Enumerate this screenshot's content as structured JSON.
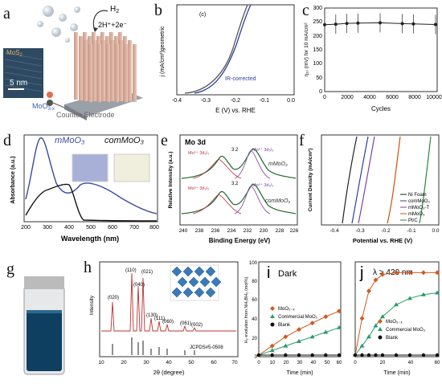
{
  "panels": {
    "a": {
      "label": "a",
      "h2": "H",
      "h2_sub": "2",
      "reaction": "2H⁺+2e⁻",
      "mos2": "MoS",
      "mos2_sub": "2",
      "scale": "5 nm",
      "moo3x": "MoO",
      "moo3x_sub": "3-x",
      "counter": "Counter Electrode"
    },
    "b": {
      "label": "b",
      "inner_tag": "(c)",
      "ylabel": "j (mA/cm²)geometric",
      "xlabel": "E (V) vs. RHE",
      "annotation": "IR-corrected",
      "xticks": [
        "-0.4",
        "-0.3",
        "-0.2",
        "-0.1",
        "0.0"
      ]
    },
    "c": {
      "label": "c",
      "ylabel": "η₁₀ (mV) for 10 mA/cm²",
      "xlabel": "Cycles",
      "xticks": [
        "0",
        "2000",
        "4000",
        "6000",
        "8000",
        "10000"
      ],
      "yticks": [
        "0",
        "50",
        "100",
        "150",
        "200",
        "250",
        "300"
      ]
    },
    "d": {
      "label": "d",
      "legend1": "mMoO₃",
      "legend2": "comMoO₃",
      "ylabel": "Absorbance (a.u.)",
      "xlabel": "Wavelength (nm)",
      "xticks": [
        "200",
        "300",
        "400",
        "500",
        "600",
        "700",
        "800"
      ]
    },
    "e": {
      "label": "e",
      "title": "Mo 3d",
      "ylabel": "Relative Intensity (a.u.)",
      "xlabel": "Binding Energy (eV)",
      "s1": "mMoO₃",
      "s2": "comMoO₃",
      "split": "3.2",
      "peak_a": "Mo⁵⁺ 3d₅/₂",
      "peak_b": "Mo⁶⁺ 3d₃/₂",
      "peak_c": "Mo⁶⁺ 3d₅/₂",
      "xticks": [
        "240",
        "238",
        "236",
        "234",
        "232",
        "230",
        "228",
        "226"
      ]
    },
    "f": {
      "label": "f",
      "ylabel": "Current Density (mA/cm²)",
      "xlabel": "Potential vs. RHE (V)",
      "legend": [
        "Ni Foam",
        "comMoO₃",
        "mMoO₃-T",
        "mMoO₃",
        "Pt/C"
      ],
      "xticks": [
        "-0.4",
        "-0.3",
        "-0.2",
        "-0.1",
        "0.0"
      ]
    },
    "g": {
      "label": "g"
    },
    "h": {
      "label": "h",
      "ylabel": "Intensity",
      "xlabel": "2θ (degree)",
      "jcpds": "JCPDS#5-0508",
      "peaks": [
        "(020)",
        "(110)",
        "(040)",
        "(021)",
        "(130)",
        "(111)",
        "(060)",
        "(061)",
        "(002)"
      ],
      "xticks": [
        "10",
        "20",
        "30",
        "40",
        "50",
        "60",
        "70"
      ]
    },
    "i": {
      "label": "i",
      "title": "Dark",
      "ylabel": "H₂ evolution from NH₃BH₃ (mol%)",
      "xlabel": "Time (min)",
      "legend": [
        "MoO₃₋ₓ",
        "Commercial MoO₃",
        "Blank"
      ],
      "xticks": [
        "0",
        "10",
        "20",
        "30",
        "40",
        "50",
        "60"
      ],
      "yticks": [
        "0",
        "20",
        "40",
        "60",
        "80",
        "100"
      ]
    },
    "j": {
      "label": "j",
      "title": "λ > 420 nm",
      "xlabel": "Time (min)",
      "legend": [
        "MoO₃₋ₓ",
        "Commercial MoO₃",
        "Blank"
      ],
      "xticks": [
        "0",
        "20",
        "40",
        "60"
      ]
    }
  },
  "chart_data": [
    {
      "type": "line",
      "panel": "c",
      "x": [
        0,
        1000,
        2000,
        3000,
        5000,
        7000,
        8000,
        10000
      ],
      "values": [
        240,
        242,
        245,
        246,
        247,
        244,
        243,
        241
      ],
      "ylim": [
        0,
        300
      ],
      "xlim": [
        0,
        10000
      ]
    },
    {
      "type": "line",
      "panel": "i",
      "x": [
        0,
        10,
        20,
        30,
        40,
        50,
        60
      ],
      "series": [
        {
          "name": "MoO₃₋ₓ",
          "values": [
            0,
            10,
            20,
            28,
            35,
            42,
            48
          ]
        },
        {
          "name": "Commercial MoO₃",
          "values": [
            0,
            5,
            10,
            15,
            20,
            25,
            30
          ]
        },
        {
          "name": "Blank",
          "values": [
            0,
            0,
            0,
            0,
            0,
            0,
            0
          ]
        }
      ],
      "ylim": [
        0,
        100
      ],
      "xlim": [
        0,
        60
      ]
    },
    {
      "type": "line",
      "panel": "j",
      "x": [
        0,
        5,
        10,
        15,
        20,
        30,
        40,
        50,
        60
      ],
      "series": [
        {
          "name": "MoO₃₋ₓ",
          "values": [
            0,
            40,
            70,
            82,
            88,
            90,
            90,
            90,
            90
          ]
        },
        {
          "name": "Commercial MoO₃",
          "values": [
            0,
            10,
            20,
            32,
            42,
            55,
            62,
            66,
            68
          ]
        },
        {
          "name": "Blank",
          "values": [
            0,
            0,
            0,
            0,
            0,
            0,
            0,
            0,
            0
          ]
        }
      ],
      "ylim": [
        0,
        100
      ],
      "xlim": [
        0,
        60
      ]
    }
  ]
}
